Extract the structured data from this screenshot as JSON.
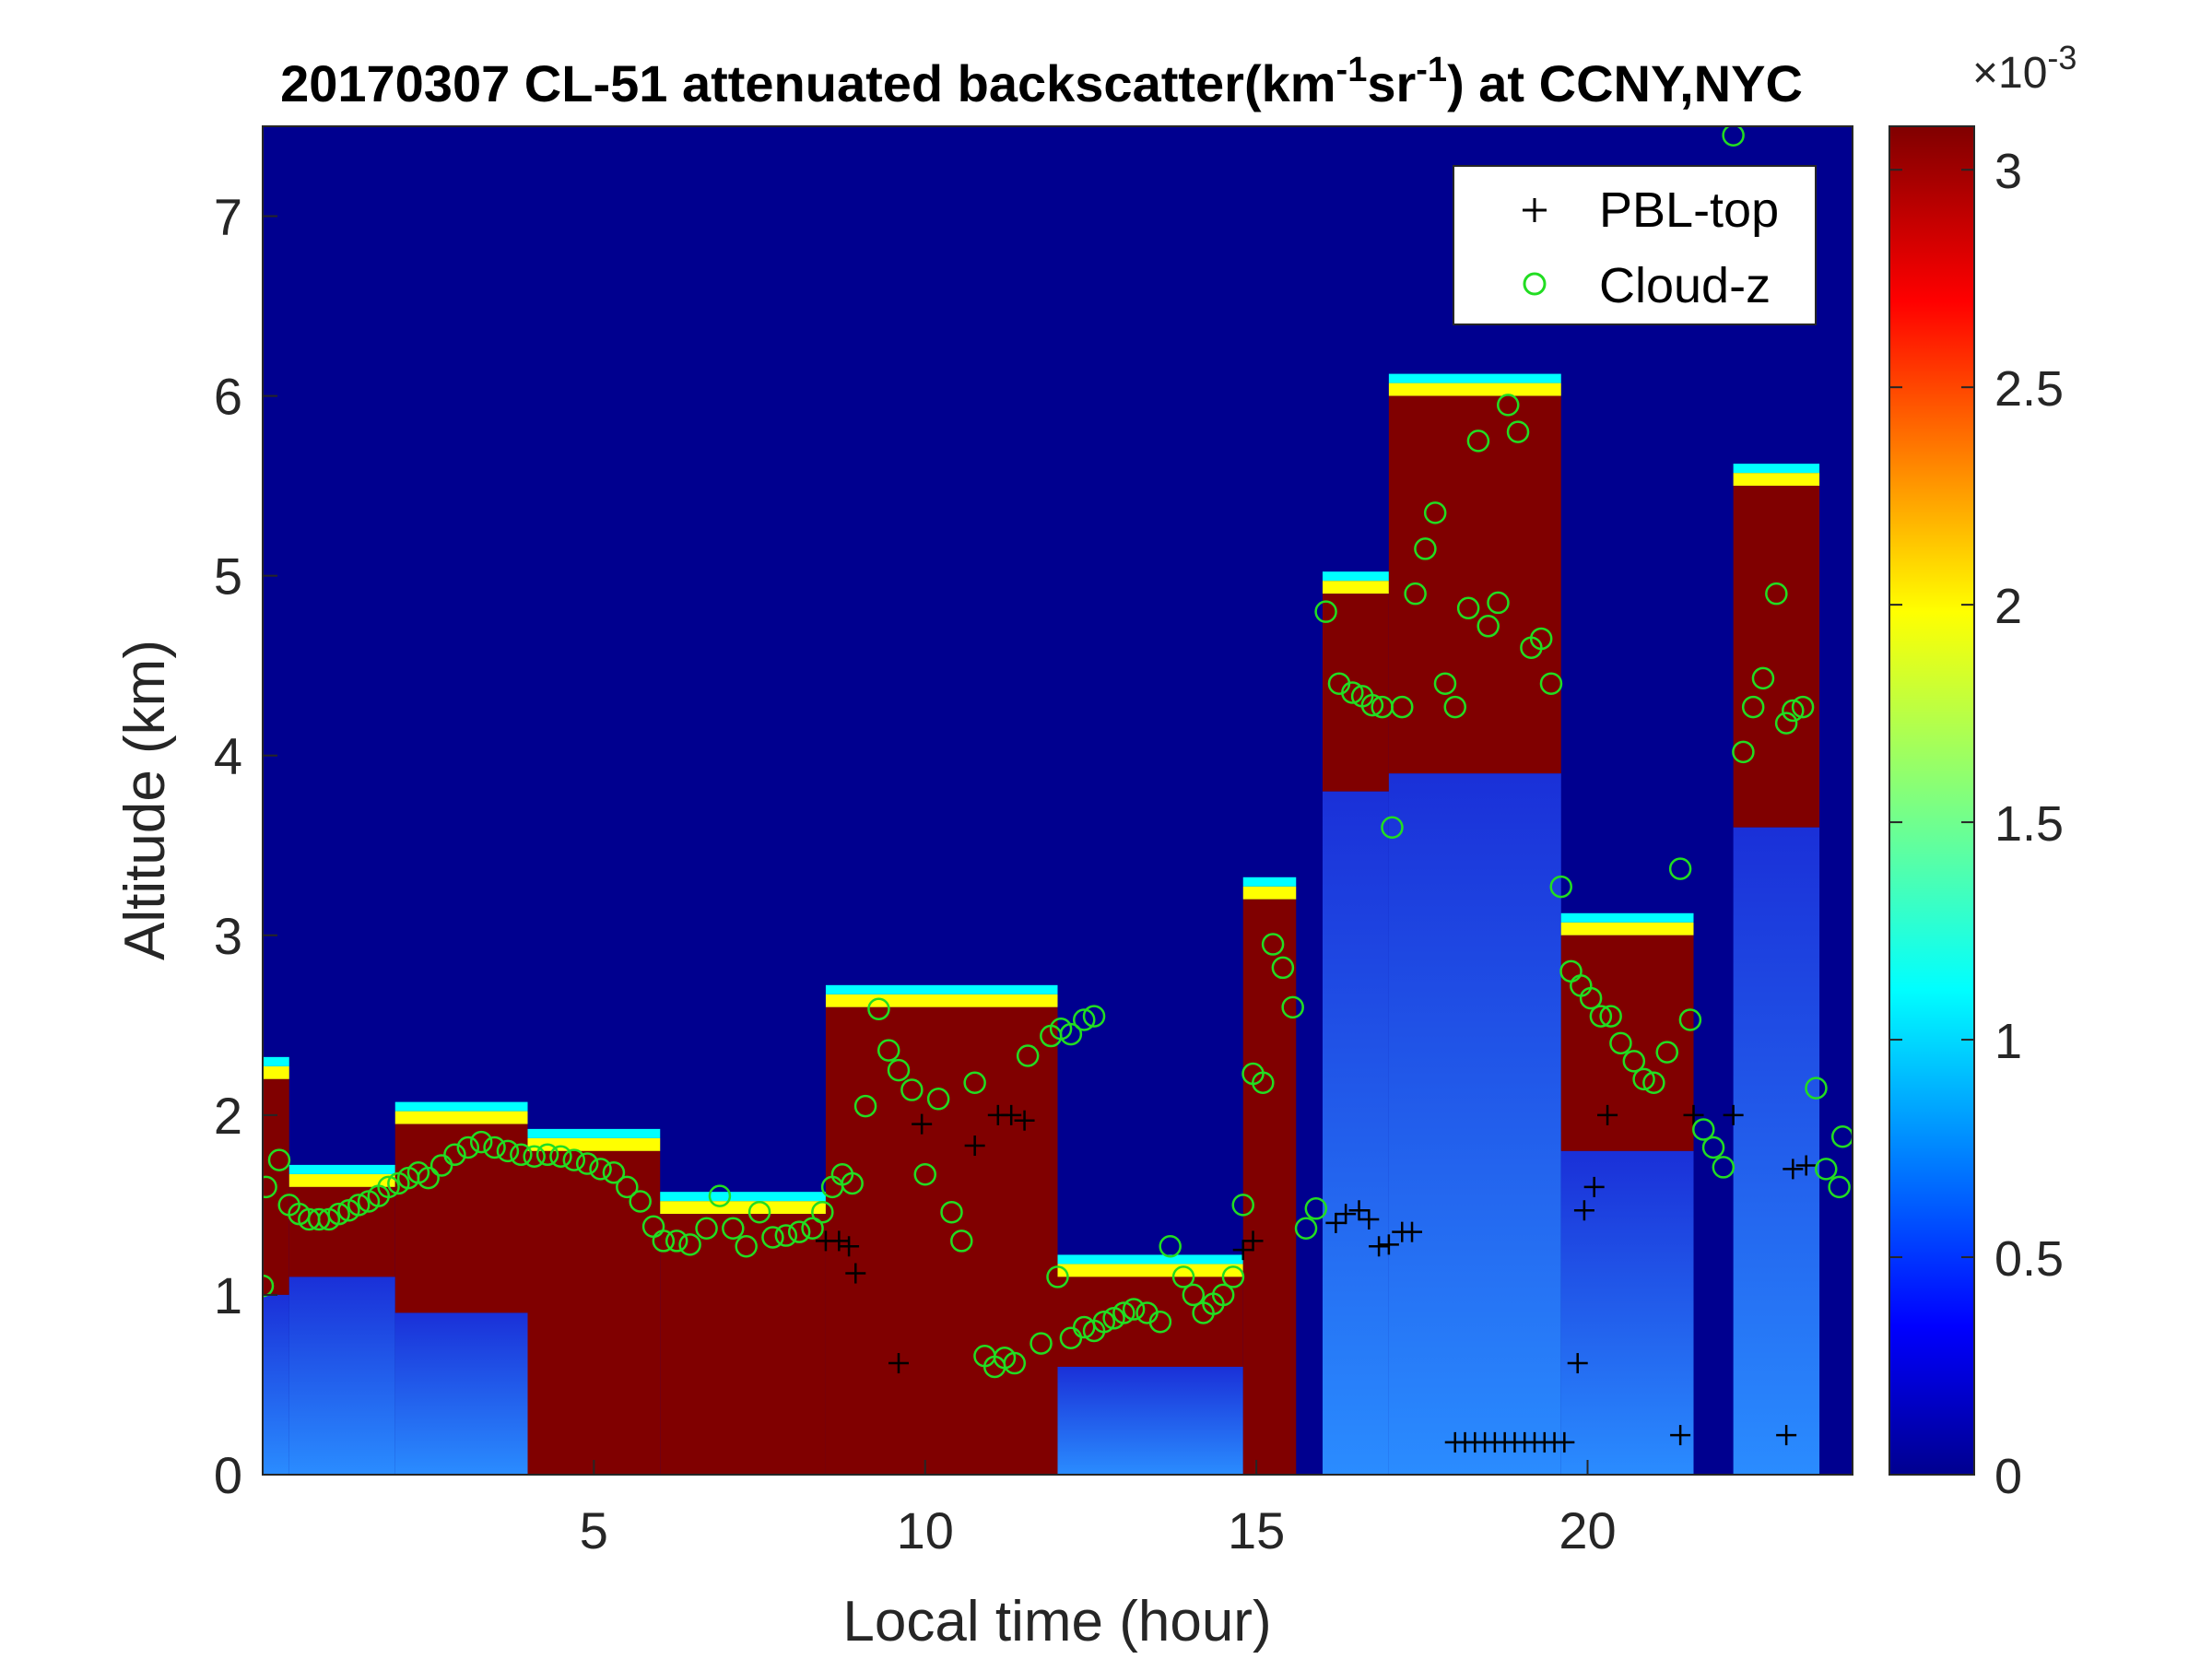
{
  "title": {
    "prefix": "20170307  CL-51 attenuated backscatter(km",
    "sup1": "-1",
    "middle": "sr",
    "sup2": "-1",
    "suffix": ") at CCNY,NYC"
  },
  "chart_data": {
    "type": "heatmap",
    "title": "20170307  CL-51 attenuated backscatter(km-1sr-1) at CCNY,NYC",
    "xlabel": "Local time (hour)",
    "ylabel": "Altitude (km)",
    "xlim": [
      0,
      24
    ],
    "ylim": [
      0,
      7.5
    ],
    "xticks": [
      5,
      10,
      15,
      20
    ],
    "yticks": [
      0,
      1,
      2,
      3,
      4,
      5,
      6,
      7
    ],
    "colorbar": {
      "range": [
        0,
        0.0031
      ],
      "ticks": [
        0,
        0.5,
        1,
        1.5,
        2,
        2.5,
        3
      ],
      "exponent_label": "×10",
      "exponent_value": "-3",
      "colormap": "jet"
    },
    "legend": {
      "position": "top-right",
      "entries": [
        {
          "name": "PBL-top",
          "marker": "+",
          "color": "#000000"
        },
        {
          "name": "Cloud-z",
          "marker": "o",
          "color": "#22dd22"
        }
      ]
    },
    "layer_profile": {
      "description_units": "hour, km",
      "segments": [
        {
          "x0": 0.0,
          "x1": 0.4,
          "base": 1.0,
          "top": 2.2
        },
        {
          "x0": 0.4,
          "x1": 2.0,
          "base": 1.1,
          "top": 1.6
        },
        {
          "x0": 2.0,
          "x1": 4.0,
          "base": 0.9,
          "top": 1.95
        },
        {
          "x0": 4.0,
          "x1": 6.0,
          "base": 0.0,
          "top": 1.8
        },
        {
          "x0": 6.0,
          "x1": 8.5,
          "base": 0.0,
          "top": 1.45
        },
        {
          "x0": 8.5,
          "x1": 12.0,
          "base": 0.0,
          "top": 2.6
        },
        {
          "x0": 12.0,
          "x1": 14.8,
          "base": 0.6,
          "top": 1.1
        },
        {
          "x0": 14.8,
          "x1": 15.6,
          "base": 0.0,
          "top": 3.2
        },
        {
          "x0": 16.0,
          "x1": 17.0,
          "base": 3.8,
          "top": 4.9
        },
        {
          "x0": 17.0,
          "x1": 19.6,
          "base": 3.9,
          "top": 6.0
        },
        {
          "x0": 19.6,
          "x1": 21.6,
          "base": 1.8,
          "top": 3.0
        },
        {
          "x0": 22.2,
          "x1": 23.5,
          "base": 3.6,
          "top": 5.5
        }
      ]
    },
    "series": [
      {
        "name": "PBL-top",
        "points": [
          [
            8.5,
            1.3
          ],
          [
            8.7,
            1.3
          ],
          [
            8.85,
            1.27
          ],
          [
            8.95,
            1.12
          ],
          [
            9.6,
            0.62
          ],
          [
            9.95,
            1.95
          ],
          [
            10.75,
            1.83
          ],
          [
            11.1,
            2.0
          ],
          [
            11.3,
            2.0
          ],
          [
            11.5,
            1.97
          ],
          [
            14.8,
            1.25
          ],
          [
            14.95,
            1.3
          ],
          [
            16.2,
            1.4
          ],
          [
            16.35,
            1.45
          ],
          [
            16.55,
            1.47
          ],
          [
            16.7,
            1.42
          ],
          [
            16.85,
            1.27
          ],
          [
            17.0,
            1.28
          ],
          [
            17.2,
            1.35
          ],
          [
            17.35,
            1.35
          ],
          [
            18.0,
            0.18
          ],
          [
            18.15,
            0.18
          ],
          [
            18.3,
            0.18
          ],
          [
            18.45,
            0.18
          ],
          [
            18.6,
            0.18
          ],
          [
            18.75,
            0.18
          ],
          [
            18.9,
            0.18
          ],
          [
            19.05,
            0.18
          ],
          [
            19.2,
            0.18
          ],
          [
            19.35,
            0.18
          ],
          [
            19.5,
            0.18
          ],
          [
            19.65,
            0.18
          ],
          [
            19.85,
            0.62
          ],
          [
            19.95,
            1.47
          ],
          [
            20.1,
            1.6
          ],
          [
            20.3,
            2.0
          ],
          [
            21.4,
            0.22
          ],
          [
            21.6,
            2.0
          ],
          [
            22.2,
            2.0
          ],
          [
            23.0,
            0.22
          ],
          [
            23.1,
            1.7
          ],
          [
            23.3,
            1.72
          ]
        ]
      },
      {
        "name": "Cloud-z",
        "points": [
          [
            0.0,
            1.05
          ],
          [
            0.05,
            1.6
          ],
          [
            0.25,
            1.75
          ],
          [
            0.4,
            1.5
          ],
          [
            0.55,
            1.45
          ],
          [
            0.7,
            1.42
          ],
          [
            0.85,
            1.42
          ],
          [
            1.0,
            1.42
          ],
          [
            1.15,
            1.45
          ],
          [
            1.3,
            1.47
          ],
          [
            1.45,
            1.5
          ],
          [
            1.6,
            1.52
          ],
          [
            1.75,
            1.55
          ],
          [
            1.9,
            1.6
          ],
          [
            2.05,
            1.62
          ],
          [
            2.2,
            1.65
          ],
          [
            2.35,
            1.68
          ],
          [
            2.5,
            1.65
          ],
          [
            2.7,
            1.72
          ],
          [
            2.9,
            1.78
          ],
          [
            3.1,
            1.82
          ],
          [
            3.3,
            1.85
          ],
          [
            3.5,
            1.82
          ],
          [
            3.7,
            1.8
          ],
          [
            3.9,
            1.78
          ],
          [
            4.1,
            1.77
          ],
          [
            4.3,
            1.78
          ],
          [
            4.5,
            1.77
          ],
          [
            4.7,
            1.75
          ],
          [
            4.9,
            1.73
          ],
          [
            5.1,
            1.7
          ],
          [
            5.3,
            1.68
          ],
          [
            5.5,
            1.6
          ],
          [
            5.7,
            1.52
          ],
          [
            5.9,
            1.38
          ],
          [
            6.05,
            1.3
          ],
          [
            6.25,
            1.3
          ],
          [
            6.45,
            1.28
          ],
          [
            6.7,
            1.37
          ],
          [
            6.9,
            1.55
          ],
          [
            7.1,
            1.37
          ],
          [
            7.3,
            1.27
          ],
          [
            7.5,
            1.46
          ],
          [
            7.7,
            1.32
          ],
          [
            7.9,
            1.33
          ],
          [
            8.1,
            1.35
          ],
          [
            8.3,
            1.37
          ],
          [
            8.45,
            1.46
          ],
          [
            8.6,
            1.6
          ],
          [
            8.75,
            1.67
          ],
          [
            8.9,
            1.62
          ],
          [
            9.1,
            2.05
          ],
          [
            9.3,
            2.59
          ],
          [
            9.45,
            2.36
          ],
          [
            9.6,
            2.25
          ],
          [
            9.8,
            2.14
          ],
          [
            10.0,
            1.67
          ],
          [
            10.2,
            2.09
          ],
          [
            10.4,
            1.46
          ],
          [
            10.55,
            1.3
          ],
          [
            10.75,
            2.18
          ],
          [
            10.9,
            0.66
          ],
          [
            11.05,
            0.6
          ],
          [
            11.2,
            0.65
          ],
          [
            11.35,
            0.62
          ],
          [
            11.55,
            2.33
          ],
          [
            11.75,
            0.73
          ],
          [
            11.9,
            2.44
          ],
          [
            12.05,
            2.48
          ],
          [
            12.2,
            2.45
          ],
          [
            12.4,
            2.53
          ],
          [
            12.55,
            2.55
          ],
          [
            12.0,
            1.1
          ],
          [
            12.2,
            0.76
          ],
          [
            12.4,
            0.82
          ],
          [
            12.55,
            0.8
          ],
          [
            12.7,
            0.85
          ],
          [
            12.85,
            0.87
          ],
          [
            13.0,
            0.9
          ],
          [
            13.15,
            0.92
          ],
          [
            13.35,
            0.9
          ],
          [
            13.55,
            0.85
          ],
          [
            13.7,
            1.27
          ],
          [
            13.9,
            1.1
          ],
          [
            14.05,
            1.0
          ],
          [
            14.2,
            0.9
          ],
          [
            14.35,
            0.95
          ],
          [
            14.5,
            1.0
          ],
          [
            14.65,
            1.1
          ],
          [
            14.8,
            1.5
          ],
          [
            14.95,
            2.23
          ],
          [
            15.1,
            2.18
          ],
          [
            15.25,
            2.95
          ],
          [
            15.4,
            2.82
          ],
          [
            15.55,
            2.6
          ],
          [
            15.75,
            1.37
          ],
          [
            15.9,
            1.48
          ],
          [
            16.05,
            4.8
          ],
          [
            16.25,
            4.4
          ],
          [
            16.45,
            4.35
          ],
          [
            16.6,
            4.33
          ],
          [
            16.75,
            4.28
          ],
          [
            16.9,
            4.27
          ],
          [
            17.05,
            3.6
          ],
          [
            17.2,
            4.27
          ],
          [
            17.4,
            4.9
          ],
          [
            17.55,
            5.15
          ],
          [
            17.7,
            5.35
          ],
          [
            17.85,
            4.4
          ],
          [
            18.0,
            4.27
          ],
          [
            18.2,
            4.82
          ],
          [
            18.35,
            5.75
          ],
          [
            18.5,
            4.72
          ],
          [
            18.65,
            4.85
          ],
          [
            18.8,
            5.95
          ],
          [
            18.95,
            5.8
          ],
          [
            19.15,
            4.6
          ],
          [
            19.3,
            4.65
          ],
          [
            19.45,
            4.4
          ],
          [
            19.6,
            3.27
          ],
          [
            19.75,
            2.8
          ],
          [
            19.9,
            2.72
          ],
          [
            20.05,
            2.65
          ],
          [
            20.2,
            2.55
          ],
          [
            20.35,
            2.55
          ],
          [
            20.5,
            2.4
          ],
          [
            20.7,
            2.3
          ],
          [
            20.85,
            2.2
          ],
          [
            21.0,
            2.18
          ],
          [
            21.2,
            2.35
          ],
          [
            21.4,
            3.37
          ],
          [
            21.55,
            2.53
          ],
          [
            21.75,
            1.92
          ],
          [
            21.9,
            1.82
          ],
          [
            22.05,
            1.71
          ],
          [
            22.2,
            7.45
          ],
          [
            22.35,
            4.02
          ],
          [
            22.5,
            4.27
          ],
          [
            22.65,
            4.43
          ],
          [
            22.85,
            4.9
          ],
          [
            23.0,
            4.18
          ],
          [
            23.1,
            4.25
          ],
          [
            23.25,
            4.27
          ],
          [
            23.45,
            2.15
          ],
          [
            23.6,
            1.7
          ],
          [
            23.8,
            1.6
          ],
          [
            23.85,
            1.88
          ]
        ]
      }
    ]
  }
}
